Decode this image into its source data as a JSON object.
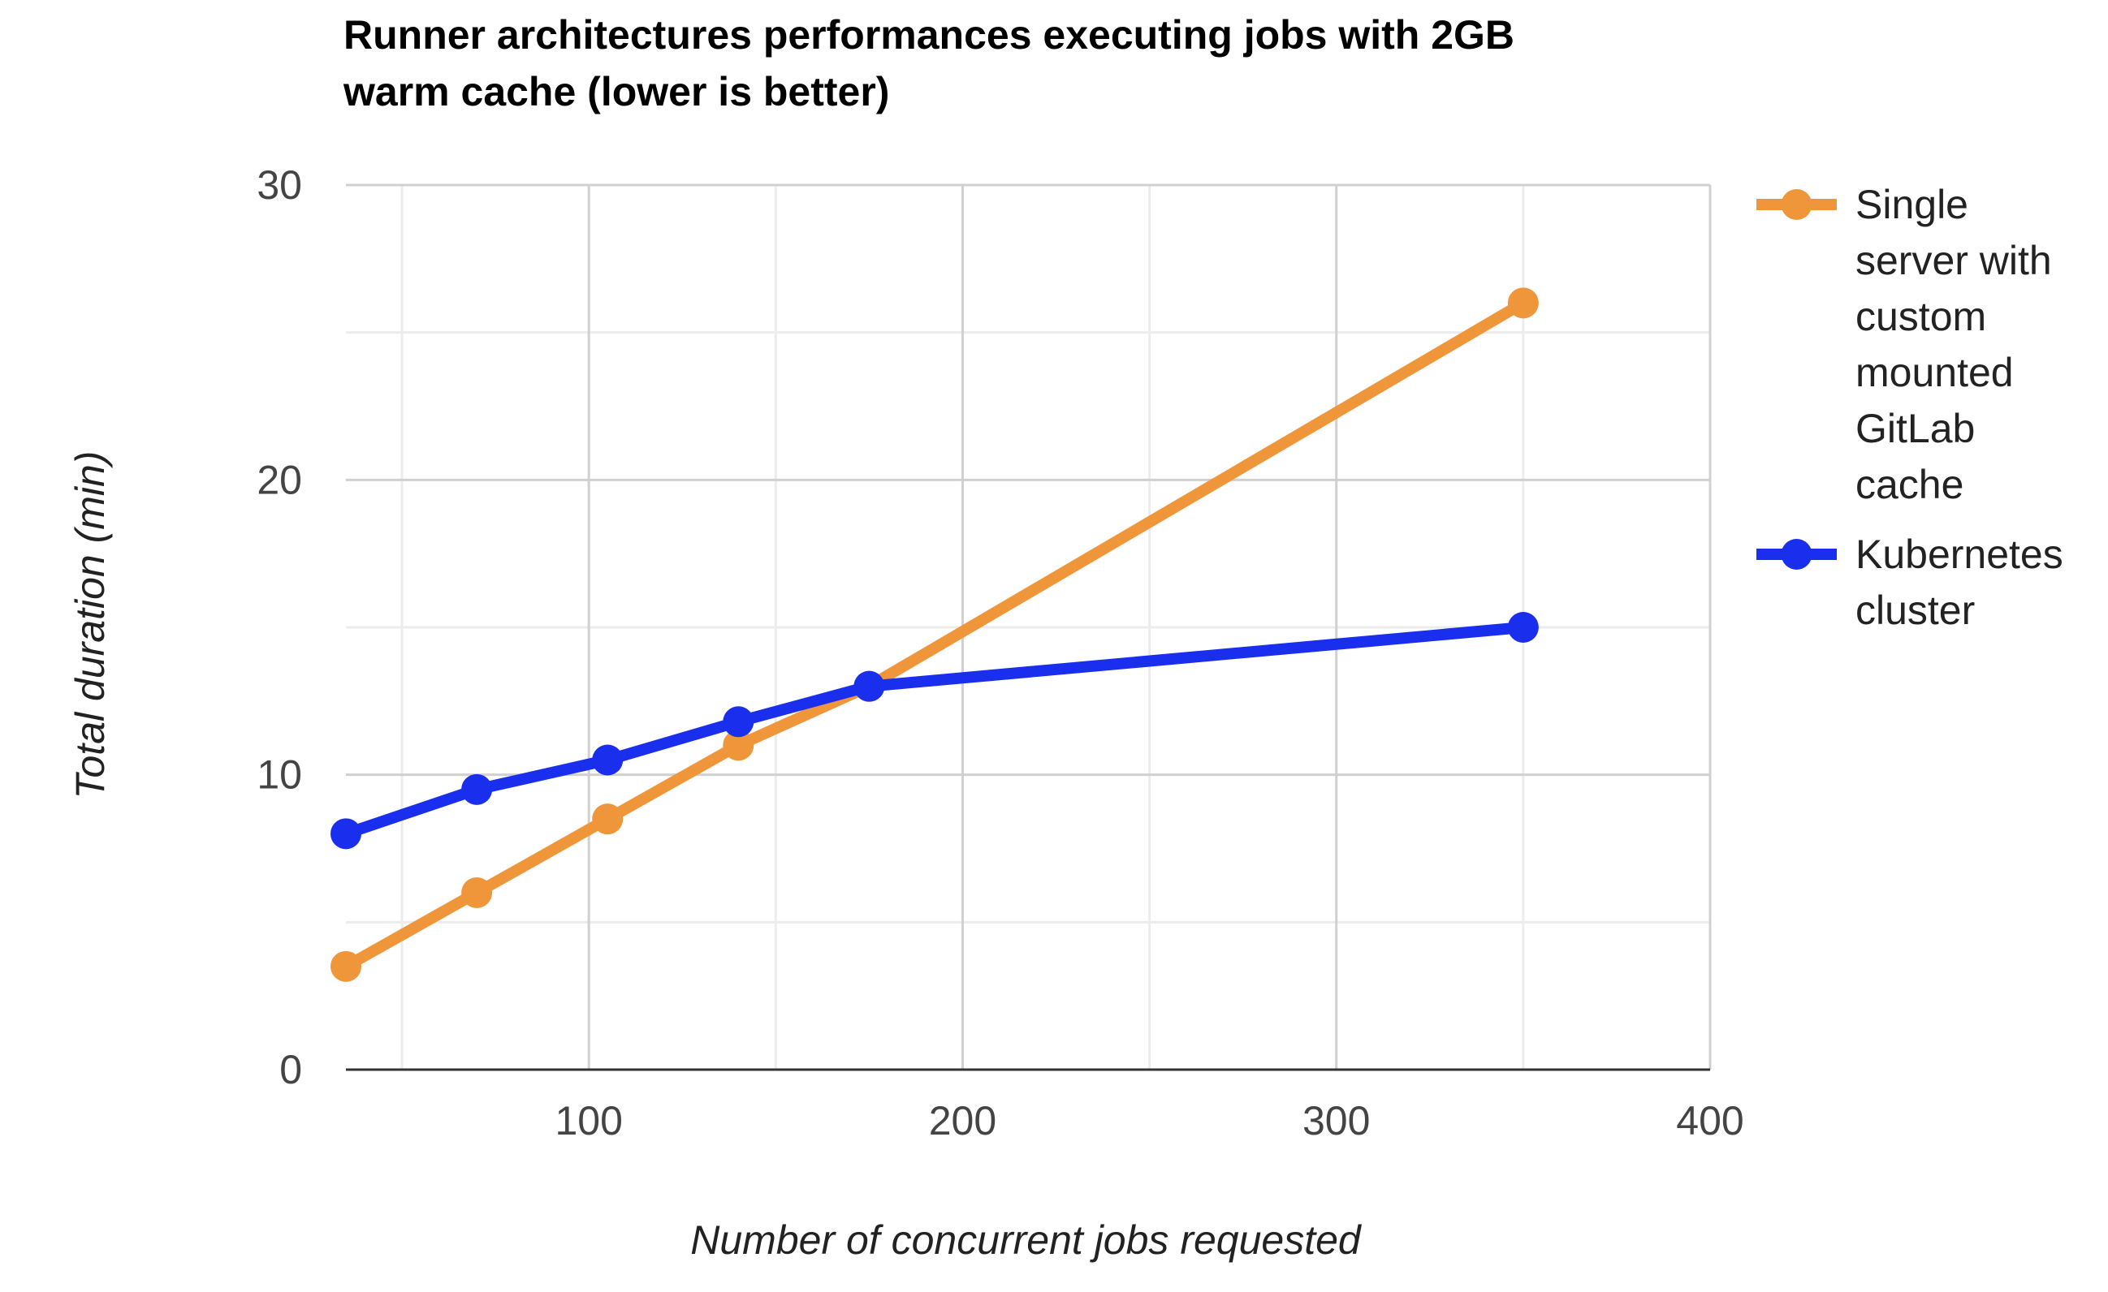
{
  "chart_data": {
    "type": "line",
    "title_lines": [
      "Runner architectures performances executing jobs with 2GB",
      "warm cache (lower is better)"
    ],
    "xlabel": "Number of concurrent jobs requested",
    "ylabel": "Total duration (min)",
    "xlim": [
      35,
      400
    ],
    "ylim": [
      0,
      30
    ],
    "x_ticks": [
      "100",
      "200",
      "300",
      "400"
    ],
    "y_ticks": [
      "0",
      "10",
      "20",
      "30"
    ],
    "grid": true,
    "legend_position": "right",
    "series": [
      {
        "name_lines": [
          "Single",
          "server with",
          "custom",
          "mounted",
          "GitLab",
          "cache"
        ],
        "color": "#F0963A",
        "x": [
          35,
          70,
          105,
          140,
          175,
          350
        ],
        "y": [
          3.5,
          6,
          8.5,
          11,
          13,
          26
        ]
      },
      {
        "name_lines": [
          "Kubernetes",
          "cluster"
        ],
        "color": "#1A2EEE",
        "x": [
          35,
          70,
          105,
          140,
          175,
          350
        ],
        "y": [
          8,
          9.5,
          10.5,
          11.8,
          13,
          15
        ]
      }
    ]
  }
}
